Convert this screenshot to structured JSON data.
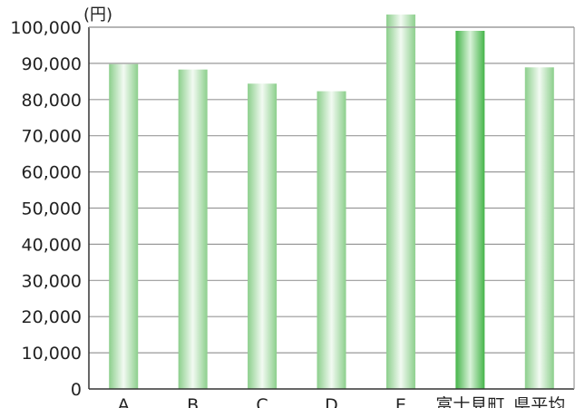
{
  "chart_data": {
    "type": "bar",
    "unit_label": "(円)",
    "categories": [
      "A",
      "B",
      "C",
      "D",
      "E",
      "富士見町",
      "県平均"
    ],
    "values": [
      89800,
      88300,
      84400,
      82300,
      103600,
      99000,
      88900
    ],
    "highlight_category": "富士見町",
    "ylim": [
      0,
      100000
    ],
    "yticks": [
      "0",
      "10,000",
      "20,000",
      "30,000",
      "40,000",
      "50,000",
      "60,000",
      "70,000",
      "80,000",
      "90,000",
      "100,000"
    ],
    "grid": true,
    "legend": "none",
    "colors": {
      "bar_light": "#f2faf2",
      "bar_dark": "#8ccf8c",
      "highlight_light": "#d9f2d9",
      "highlight_dark": "#45b54a",
      "grid": "#999999",
      "axis": "#333333"
    }
  }
}
